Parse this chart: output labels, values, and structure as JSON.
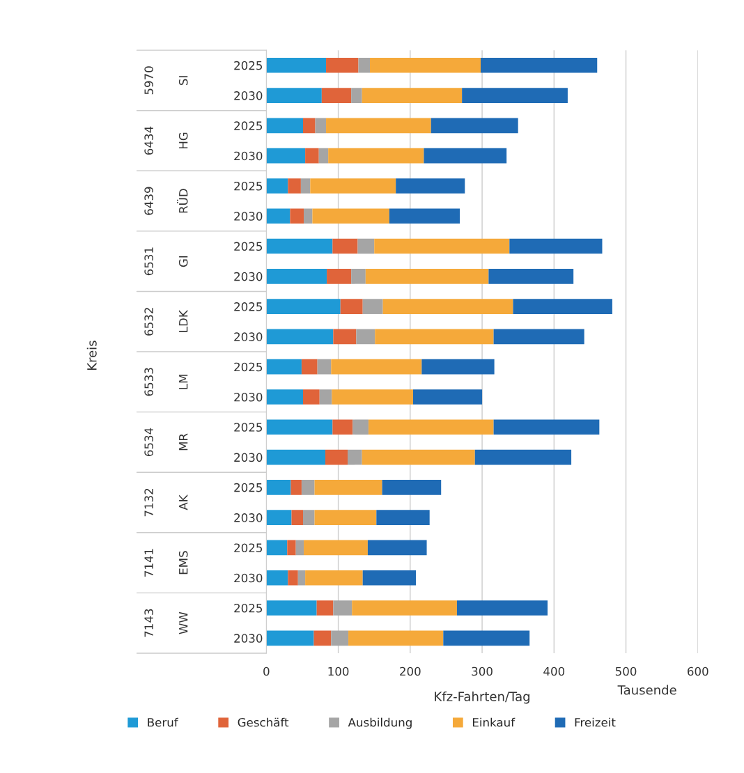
{
  "chart_data": {
    "type": "bar",
    "orientation": "horizontal",
    "stacked": true,
    "xlabel": "Kfz-Fahrten/Tag",
    "categories": [
      "2025",
      "2030",
      "2025",
      "2030",
      "2025",
      "2030",
      "2025",
      "2030",
      "2025",
      "2030",
      "2025",
      "2030",
      "2025",
      "2030",
      "2025",
      "2030",
      "2025",
      "2030",
      "2025",
      "2030"
    ],
    "series": [
      {
        "name": "Beruf",
        "color": "#1f9ad6",
        "values": [
          83,
          77,
          51,
          54,
          30,
          33,
          92,
          84,
          103,
          93,
          49,
          51,
          92,
          82,
          34,
          35,
          29,
          30,
          70,
          66
        ]
      },
      {
        "name": "Geschäft",
        "color": "#e0643a",
        "values": [
          45,
          41,
          17,
          19,
          18,
          19,
          35,
          34,
          31,
          32,
          22,
          23,
          28,
          31,
          15,
          16,
          12,
          14,
          23,
          24
        ]
      },
      {
        "name": "Ausbildung",
        "color": "#a5a5a5",
        "values": [
          16,
          15,
          15,
          13,
          13,
          12,
          23,
          20,
          28,
          26,
          19,
          17,
          22,
          20,
          18,
          16,
          11,
          10,
          26,
          24
        ]
      },
      {
        "name": "Einkauf",
        "color": "#f5a93a",
        "values": [
          154,
          139,
          146,
          133,
          119,
          107,
          188,
          171,
          181,
          165,
          126,
          113,
          174,
          157,
          94,
          86,
          89,
          80,
          146,
          132
        ]
      },
      {
        "name": "Freizeit",
        "color": "#1f6bb5",
        "values": [
          162,
          147,
          121,
          115,
          96,
          98,
          129,
          118,
          138,
          126,
          101,
          96,
          147,
          134,
          82,
          74,
          82,
          74,
          126,
          120
        ]
      }
    ],
    "xlim": [
      0,
      600
    ],
    "xticks": [
      0,
      100,
      200,
      300,
      400,
      500,
      600
    ],
    "grid": "x",
    "legend": "bottom",
    "annotations": [
      "Tausende",
      "Kreis",
      "SI",
      "5970",
      "HG",
      "6434",
      "RÜD",
      "6439",
      "GI",
      "6531",
      "LDK",
      "6532",
      "LM",
      "6533",
      "MR",
      "6534",
      "AK",
      "7132",
      "EMS",
      "7141",
      "WW",
      "7143"
    ]
  }
}
